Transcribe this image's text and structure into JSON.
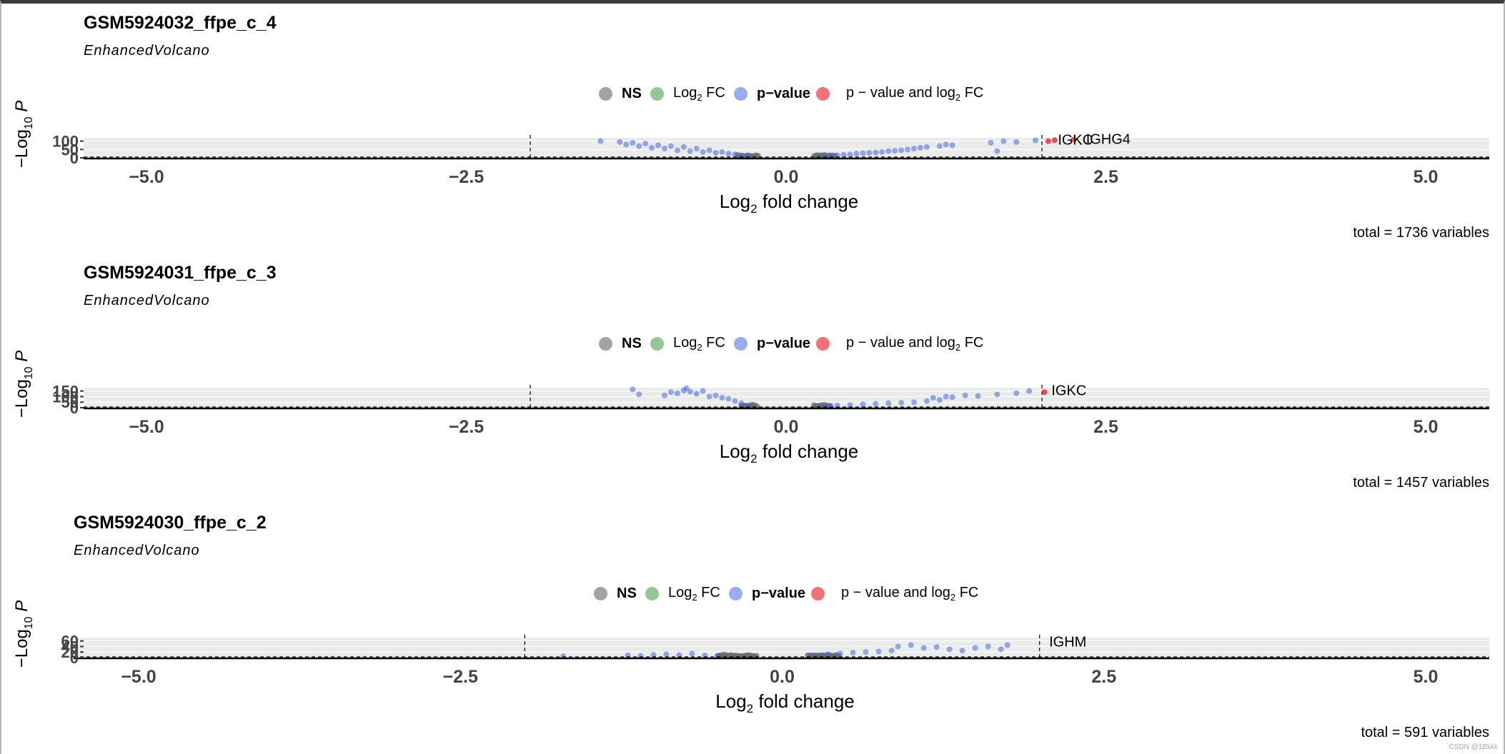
{
  "colors": {
    "ns": "#666666",
    "log2fc": "#2e8b2e",
    "pvalue": "#4169e1",
    "both": "#e8161d"
  },
  "watermark": "CSDN @1Bkkk",
  "chart_data": [
    {
      "type": "scatter",
      "title": "GSM5924032_ffpe_c_4",
      "subtitle": "EnhancedVolcano",
      "xlabel": "Log2 fold change",
      "ylabel": "-Log10 P",
      "xlim": [
        -5.5,
        5.5
      ],
      "ylim": [
        0,
        120
      ],
      "xticks": [
        "−5.0",
        "−2.5",
        "0.0",
        "2.5",
        "5.0"
      ],
      "yticks": [
        "0",
        "50",
        "100"
      ],
      "fc_cutoff": 2,
      "legend": [
        "NS",
        "Log2 FC",
        "p−value",
        "p − value and log2 FC"
      ],
      "caption": "total = 1736 variables",
      "labels": [
        {
          "text": "IGKC",
          "x": 2.08,
          "y": 106
        },
        {
          "text": "IGHG4",
          "x": 2.3,
          "y": 110
        }
      ],
      "ns_ranges": [
        [
          -0.38,
          -0.22
        ],
        [
          0.22,
          0.38
        ]
      ],
      "neg_x": [
        -1.45,
        -1.3,
        -1.25,
        -1.2,
        -1.15,
        -1.1,
        -1.05,
        -1.0,
        -0.95,
        -0.9,
        -0.85,
        -0.8,
        -0.75,
        -0.7,
        -0.65,
        -0.6,
        -0.55,
        -0.5,
        -0.45,
        -0.4,
        -0.35,
        -0.3
      ],
      "neg_y": [
        100,
        95,
        80,
        90,
        70,
        85,
        60,
        75,
        55,
        70,
        45,
        65,
        40,
        55,
        35,
        45,
        30,
        35,
        25,
        20,
        15,
        10
      ],
      "pos_x": [
        0.3,
        0.35,
        0.4,
        0.45,
        0.5,
        0.55,
        0.6,
        0.65,
        0.7,
        0.75,
        0.8,
        0.85,
        0.9,
        0.95,
        1.0,
        1.05,
        1.1,
        1.2,
        1.25,
        1.3,
        1.6,
        1.65,
        1.7,
        1.8,
        1.95
      ],
      "pos_y": [
        8,
        12,
        15,
        18,
        20,
        25,
        28,
        30,
        32,
        35,
        40,
        42,
        45,
        50,
        55,
        60,
        65,
        70,
        80,
        75,
        90,
        40,
        100,
        95,
        105
      ],
      "both_x": [
        2.05,
        2.1,
        2.25
      ],
      "both_y": [
        100,
        106,
        110
      ]
    },
    {
      "type": "scatter",
      "title": "GSM5924031_ffpe_c_3",
      "subtitle": "EnhancedVolcano",
      "xlabel": "Log2 fold change",
      "ylabel": "-Log10 P",
      "xlim": [
        -5.5,
        5.5
      ],
      "ylim": [
        0,
        180
      ],
      "xticks": [
        "−5.0",
        "−2.5",
        "0.0",
        "2.5",
        "5.0"
      ],
      "yticks": [
        "0",
        "50",
        "100",
        "150"
      ],
      "fc_cutoff": 2,
      "legend": [
        "NS",
        "Log2 FC",
        "p−value",
        "p − value and log2 FC"
      ],
      "caption": "total = 1457 variables",
      "labels": [
        {
          "text": "IGKC",
          "x": 2.03,
          "y": 150
        }
      ],
      "ns_ranges": [
        [
          -0.35,
          -0.22
        ],
        [
          0.22,
          0.35
        ]
      ],
      "neg_x": [
        -1.2,
        -1.15,
        -0.95,
        -0.9,
        -0.85,
        -0.8,
        -0.78,
        -0.75,
        -0.7,
        -0.65,
        -0.6,
        -0.55,
        -0.5,
        -0.45,
        -0.4,
        -0.35,
        -0.3
      ],
      "neg_y": [
        165,
        120,
        110,
        140,
        130,
        155,
        175,
        145,
        125,
        150,
        100,
        110,
        90,
        80,
        60,
        40,
        20
      ],
      "pos_x": [
        0.3,
        0.35,
        0.4,
        0.5,
        0.6,
        0.7,
        0.8,
        0.9,
        1.0,
        1.1,
        1.15,
        1.2,
        1.25,
        1.3,
        1.4,
        1.5,
        1.65,
        1.8,
        1.9
      ],
      "pos_y": [
        10,
        15,
        20,
        25,
        30,
        35,
        40,
        45,
        50,
        60,
        90,
        70,
        100,
        95,
        110,
        105,
        120,
        130,
        150
      ],
      "both_x": [
        2.02
      ],
      "both_y": [
        140
      ]
    },
    {
      "type": "scatter",
      "title": "GSM5924030_ffpe_c_2",
      "subtitle": "EnhancedVolcano",
      "xlabel": "Log2 fold change",
      "ylabel": "-Log10 P",
      "xlim": [
        -5.5,
        5.5
      ],
      "ylim": [
        0,
        72
      ],
      "xticks": [
        "−5.0",
        "−2.5",
        "0.0",
        "2.5",
        "5.0"
      ],
      "yticks": [
        "0",
        "20",
        "40",
        "60"
      ],
      "fc_cutoff": 2,
      "legend": [
        "NS",
        "Log2 FC",
        "p−value",
        "p − value and log2 FC"
      ],
      "caption": "total = 591 variables",
      "labels": [
        {
          "text": "IGHM",
          "x": 2.03,
          "y": 55
        }
      ],
      "ns_ranges": [
        [
          -0.5,
          -0.2
        ],
        [
          0.2,
          0.45
        ]
      ],
      "neg_x": [
        -1.7,
        -1.2,
        -1.1,
        -1.0,
        -0.9,
        -0.8,
        -0.7,
        -0.6,
        -0.5
      ],
      "neg_y": [
        5,
        8,
        6,
        10,
        12,
        9,
        15,
        8,
        6
      ],
      "pos_x": [
        0.25,
        0.35,
        0.45,
        0.55,
        0.65,
        0.75,
        0.85,
        0.9,
        1.0,
        1.1,
        1.2,
        1.3,
        1.4,
        1.5,
        1.6,
        1.7,
        1.75
      ],
      "pos_y": [
        8,
        12,
        15,
        18,
        20,
        22,
        25,
        40,
        45,
        35,
        38,
        30,
        25,
        35,
        40,
        30,
        45
      ],
      "both_x": [],
      "both_y": []
    }
  ]
}
